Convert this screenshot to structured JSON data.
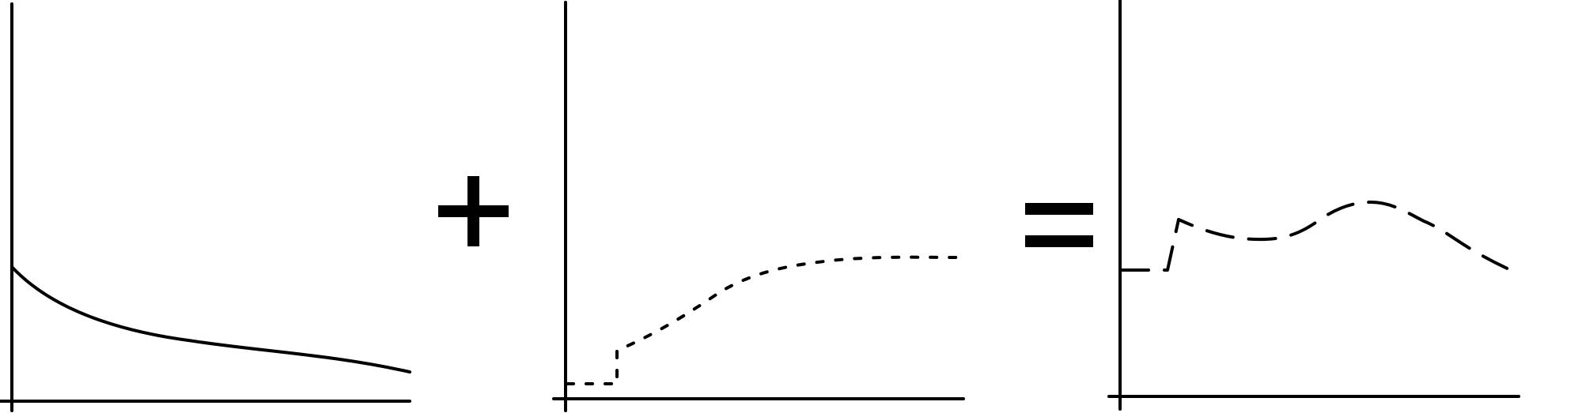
{
  "diagram": {
    "panels": [
      {
        "id": "panel-1",
        "curve_style": "solid",
        "shape": "decaying curve that starts high on the vertical axis and falls toward the right"
      },
      {
        "id": "panel-2",
        "curve_style": "dotted",
        "shape": "flat near zero, then a sharp step up followed by a rising curve that levels off"
      },
      {
        "id": "panel-3",
        "curve_style": "dashed",
        "shape": "sum of the two: flat, then a step up, a dip, a hump, and a decline"
      }
    ],
    "operators": [
      {
        "id": "plus",
        "symbol": "+"
      },
      {
        "id": "equals",
        "symbol": "="
      }
    ],
    "colors": {
      "ink": "#000000",
      "background": "#ffffff"
    }
  }
}
